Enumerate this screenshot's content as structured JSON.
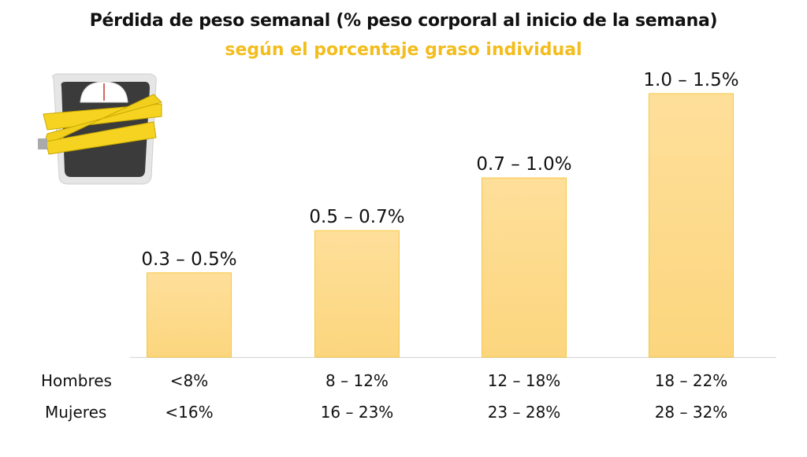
{
  "chart_data": {
    "type": "bar",
    "title": "Pérdida de peso semanal (% peso corporal al inicio de la semana)",
    "subtitle": "según el porcentaje graso individual",
    "rows": [
      {
        "label": "Hombres",
        "categories": [
          "<8%",
          "8 – 12%",
          "12 – 18%",
          "18 – 22%"
        ]
      },
      {
        "label": "Mujeres",
        "categories": [
          "<16%",
          "16 – 23%",
          "23 – 28%",
          "28 – 32%"
        ]
      }
    ],
    "data_labels": [
      "0.3 – 0.5%",
      "0.5 – 0.7%",
      "0.7 – 1.0%",
      "1.0 – 1.5%"
    ],
    "ranges": [
      [
        0.3,
        0.5
      ],
      [
        0.5,
        0.7
      ],
      [
        0.7,
        1.0
      ],
      [
        1.0,
        1.5
      ]
    ],
    "values": [
      0.4,
      0.6,
      0.85,
      1.25
    ],
    "ylim": [
      0,
      1.5
    ],
    "grid": false,
    "colors": {
      "bar_fill": "#fddb8c",
      "bar_stroke": "#f5c842",
      "subtitle": "#f3bd1d",
      "axis": "#d9d9d9"
    },
    "icon": "bathroom-scale-with-measuring-tape-icon"
  }
}
